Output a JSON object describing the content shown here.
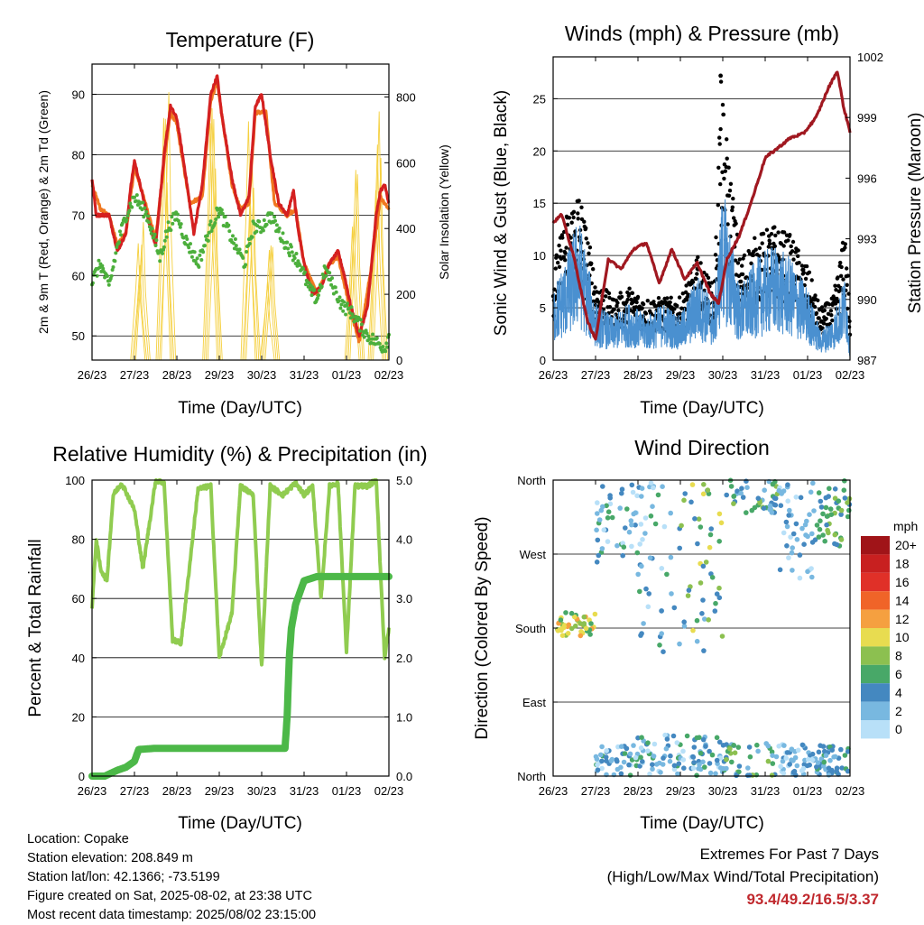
{
  "panels": {
    "temperature": {
      "title": "Temperature (F)",
      "xlabel": "Time (Day/UTC)",
      "ylabel_left": "2m & 9m T (Red, Orange) & 2m Td (Green)",
      "ylabel_right": "Solar Insolation (Yellow)"
    },
    "winds": {
      "title": "Winds (mph) & Pressure (mb)",
      "xlabel": "Time (Day/UTC)",
      "ylabel_left": "Sonic Wind & Gust (Blue, Black)",
      "ylabel_right": "Station Pressure (Maroon)"
    },
    "humidity": {
      "title": "Relative Humidity (%) & Precipitation (in)",
      "xlabel": "Time (Day/UTC)",
      "ylabel_left": "Percent & Total Rainfall"
    },
    "direction": {
      "title": "Wind Direction",
      "xlabel": "Time (Day/UTC)",
      "ylabel_left": "Direction (Colored By Speed)",
      "legend_title": "mph",
      "legend_labels": [
        "20+",
        "18",
        "16",
        "14",
        "12",
        "10",
        "8",
        "6",
        "4",
        "2",
        "0"
      ]
    }
  },
  "info": {
    "location": "Location: Copake",
    "elevation": "Station elevation: 208.849 m",
    "latlon": "Station lat/lon: 42.1366; -73.5199",
    "created": "Figure created on Sat, 2025-08-02, at 23:38 UTC",
    "timestamp": "Most recent data timestamp: 2025/08/02 23:15:00"
  },
  "extremes": {
    "line1": "Extremes For Past 7 Days",
    "line2": "(High/Low/Max Wind/Total Precipitation)",
    "values": "93.4/49.2/16.5/3.37"
  },
  "colors": {
    "temp_2m": "#d42020",
    "temp_9m": "#f07820",
    "dewpoint": "#4caf3c",
    "solar": "#f5d040",
    "wind": "#4a90d0",
    "gust": "#000000",
    "pressure": "#a01820",
    "rh": "#90cc50",
    "rain": "#4cb848",
    "speed_scale": [
      "#a01418",
      "#c82020",
      "#e03028",
      "#f06428",
      "#f5a040",
      "#e8dc50",
      "#8cc050",
      "#48a868",
      "#4488c0",
      "#78b8e0",
      "#b8e0f8"
    ]
  },
  "chart_data": [
    {
      "type": "line",
      "title": "Temperature (F)",
      "xlabel": "Time (Day/UTC)",
      "ylabel": "2m & 9m T (Red, Orange) & 2m Td (Green)",
      "y2label": "Solar Insolation (Yellow)",
      "x_ticks": [
        "26/23",
        "27/23",
        "28/23",
        "29/23",
        "30/23",
        "31/23",
        "01/23",
        "02/23"
      ],
      "ylim": [
        46,
        95
      ],
      "y_ticks": [
        50,
        60,
        70,
        80,
        90
      ],
      "y2lim": [
        0,
        900
      ],
      "y2_ticks": [
        0,
        200,
        400,
        600,
        800
      ],
      "grid": true,
      "series": [
        {
          "name": "2m T",
          "x": [
            0,
            0.1,
            0.2,
            0.4,
            0.6,
            0.8,
            0.9,
            1.0,
            1.1,
            1.3,
            1.5,
            1.7,
            1.85,
            2.0,
            2.2,
            2.4,
            2.6,
            2.8,
            2.95,
            3.05,
            3.3,
            3.5,
            3.7,
            3.85,
            4.0,
            4.2,
            4.4,
            4.6,
            4.75,
            4.85,
            5.0,
            5.2,
            5.4,
            5.6,
            5.8,
            5.95,
            6.1,
            6.3,
            6.5,
            6.7,
            6.8,
            6.9,
            7.0
          ],
          "y": [
            76,
            70,
            70,
            70,
            64,
            67,
            74,
            79,
            76,
            70,
            65,
            80,
            88,
            86,
            77,
            67,
            75,
            90,
            93,
            87,
            76,
            70,
            73,
            88,
            90,
            80,
            72,
            70,
            74,
            68,
            62,
            57,
            58,
            62,
            64,
            60,
            55,
            50,
            55,
            70,
            74,
            75,
            72
          ]
        },
        {
          "name": "9m T",
          "x": [
            0,
            0.2,
            0.4,
            0.6,
            0.8,
            1.0,
            1.3,
            1.5,
            1.7,
            1.85,
            2.0,
            2.3,
            2.6,
            2.8,
            2.95,
            3.3,
            3.5,
            3.7,
            3.85,
            4.1,
            4.3,
            4.6,
            4.8,
            5.0,
            5.3,
            5.6,
            5.8,
            6.1,
            6.3,
            6.6,
            6.8,
            7.0
          ],
          "y": [
            75,
            71,
            70,
            65,
            67,
            78,
            71,
            66,
            79,
            87,
            85,
            72,
            73,
            89,
            92,
            75,
            71,
            72,
            87,
            87,
            72,
            70,
            71,
            62,
            57,
            62,
            63,
            54,
            49,
            62,
            73,
            71
          ]
        },
        {
          "name": "2m Td",
          "x": [
            0,
            0.2,
            0.4,
            0.6,
            0.8,
            1.0,
            1.3,
            1.6,
            1.8,
            2.0,
            2.2,
            2.5,
            2.8,
            3.0,
            3.3,
            3.6,
            3.8,
            4.0,
            4.2,
            4.5,
            4.7,
            4.9,
            5.1,
            5.3,
            5.5,
            5.7,
            5.9,
            6.1,
            6.3,
            6.5,
            6.7,
            6.9,
            7.0
          ],
          "y": [
            59,
            62,
            58,
            65,
            70,
            73,
            70,
            63,
            68,
            70,
            66,
            62,
            68,
            71,
            66,
            62,
            68,
            68,
            70,
            66,
            64,
            62,
            58,
            56,
            61,
            58,
            55,
            54,
            52,
            50,
            49,
            48,
            50
          ]
        },
        {
          "name": "Solar Insolation",
          "y_axis": "right",
          "peaks": [
            {
              "x": 1.15,
              "y": 420
            },
            {
              "x": 1.75,
              "y": 860
            },
            {
              "x": 2.85,
              "y": 830
            },
            {
              "x": 3.75,
              "y": 800
            },
            {
              "x": 4.2,
              "y": 370
            },
            {
              "x": 6.75,
              "y": 860
            },
            {
              "x": 6.2,
              "y": 600
            }
          ]
        }
      ]
    },
    {
      "type": "line",
      "title": "Winds (mph) & Pressure (mb)",
      "xlabel": "Time (Day/UTC)",
      "ylabel": "Sonic Wind & Gust (Blue, Black)",
      "y2label": "Station Pressure (Maroon)",
      "x_ticks": [
        "26/23",
        "27/23",
        "28/23",
        "29/23",
        "30/23",
        "31/23",
        "01/23",
        "02/23"
      ],
      "ylim": [
        0,
        29
      ],
      "y_ticks": [
        0,
        5,
        10,
        15,
        20,
        25
      ],
      "y2lim": [
        987,
        1002
      ],
      "y2_ticks": [
        987,
        990,
        993,
        996,
        999,
        1002
      ],
      "grid": true,
      "series": [
        {
          "name": "Sonic Wind",
          "x": [
            0,
            0.3,
            0.6,
            1.0,
            1.4,
            1.8,
            2.2,
            2.6,
            3.0,
            3.4,
            3.8,
            4.0,
            4.4,
            4.8,
            5.2,
            5.6,
            6.0,
            6.3,
            6.6,
            6.9,
            7.0
          ],
          "y": [
            5,
            7,
            10,
            4,
            3,
            4,
            3,
            4,
            3,
            6,
            4,
            12,
            5,
            7,
            8,
            7,
            5,
            2,
            3,
            6,
            1
          ]
        },
        {
          "name": "Gust",
          "x": [
            0,
            0.3,
            0.6,
            1.0,
            1.4,
            1.8,
            2.2,
            2.6,
            3.0,
            3.4,
            3.8,
            3.95,
            4.4,
            4.8,
            5.2,
            5.6,
            6.0,
            6.3,
            6.6,
            6.9,
            7.0
          ],
          "y": [
            9,
            14,
            17,
            8,
            6,
            7,
            6,
            6,
            6,
            10,
            7,
            27,
            10,
            12,
            13,
            12,
            9,
            5,
            6,
            13,
            4
          ]
        },
        {
          "name": "Station Pressure",
          "y_axis": "right",
          "x": [
            0,
            0.2,
            0.5,
            0.8,
            1.0,
            1.3,
            1.6,
            1.9,
            2.2,
            2.5,
            2.8,
            3.1,
            3.4,
            3.7,
            3.9,
            4.1,
            4.4,
            4.7,
            5.0,
            5.3,
            5.6,
            5.9,
            6.2,
            6.5,
            6.7,
            6.85,
            7.0
          ],
          "y": [
            993.8,
            994.2,
            992.0,
            989.0,
            988.0,
            992.0,
            991.5,
            992.5,
            992.8,
            990.8,
            992.5,
            991.0,
            991.8,
            990.3,
            989.8,
            992.0,
            993.2,
            995.0,
            997.0,
            997.5,
            998.0,
            998.2,
            999.0,
            1000.5,
            1001.3,
            999.5,
            998.3
          ]
        }
      ]
    },
    {
      "type": "line",
      "title": "Relative Humidity (%) & Precipitation (in)",
      "xlabel": "Time (Day/UTC)",
      "ylabel": "Percent & Total Rainfall",
      "x_ticks": [
        "26/23",
        "27/23",
        "28/23",
        "29/23",
        "30/23",
        "31/23",
        "01/23",
        "02/23"
      ],
      "ylim": [
        0,
        100
      ],
      "y_ticks": [
        0,
        20,
        40,
        60,
        80,
        100
      ],
      "y2lim": [
        0,
        5
      ],
      "y2_ticks": [
        "0.0",
        "1.0",
        "2.0",
        "3.0",
        "4.0",
        "5.0"
      ],
      "grid": true,
      "series": [
        {
          "name": "Relative Humidity",
          "x": [
            0,
            0.1,
            0.2,
            0.35,
            0.5,
            0.7,
            1.0,
            1.2,
            1.5,
            1.7,
            1.9,
            2.1,
            2.5,
            2.8,
            3.0,
            3.3,
            3.5,
            3.8,
            4.0,
            4.2,
            4.5,
            4.8,
            5.0,
            5.2,
            5.4,
            5.6,
            5.8,
            6.0,
            6.2,
            6.5,
            6.7,
            6.9,
            7.0
          ],
          "y": [
            57,
            80,
            70,
            66,
            95,
            99,
            90,
            70,
            100,
            99,
            46,
            45,
            97,
            98,
            40,
            55,
            98,
            95,
            37,
            98,
            95,
            99,
            95,
            98,
            60,
            98,
            99,
            42,
            98,
            98,
            100,
            40,
            50
          ]
        },
        {
          "name": "Total Rainfall",
          "y_axis": "right",
          "x": [
            0,
            0.3,
            0.6,
            0.8,
            1.0,
            1.1,
            1.5,
            2.0,
            3.0,
            4.0,
            4.55,
            4.6,
            4.65,
            4.7,
            4.8,
            4.9,
            5.0,
            5.3,
            6.0,
            7.0
          ],
          "y": [
            0.0,
            0.0,
            0.1,
            0.15,
            0.25,
            0.45,
            0.47,
            0.47,
            0.47,
            0.47,
            0.47,
            1.0,
            2.0,
            2.5,
            2.9,
            3.1,
            3.3,
            3.37,
            3.37,
            3.37
          ]
        }
      ]
    },
    {
      "type": "scatter",
      "title": "Wind Direction",
      "xlabel": "Time (Day/UTC)",
      "ylabel": "Direction (Colored By Speed)",
      "x_ticks": [
        "26/23",
        "27/23",
        "28/23",
        "29/23",
        "30/23",
        "31/23",
        "01/23",
        "02/23"
      ],
      "y_ticks": [
        "North",
        "East",
        "South",
        "West",
        "North"
      ],
      "ylim": [
        0,
        360
      ],
      "grid": true,
      "legend": {
        "title": "mph",
        "labels": [
          "20+",
          "18",
          "16",
          "14",
          "12",
          "10",
          "8",
          "6",
          "4",
          "2",
          "0"
        ],
        "placement": "right"
      },
      "clusters": [
        {
          "x": [
            0.1,
            1.0
          ],
          "dir": [
            170,
            200
          ],
          "speed": [
            6,
            12
          ]
        },
        {
          "x": [
            1.0,
            2.0
          ],
          "dir": [
            0,
            40
          ],
          "speed": [
            0,
            6
          ]
        },
        {
          "x": [
            1.0,
            2.0
          ],
          "dir": [
            260,
            360
          ],
          "speed": [
            0,
            6
          ]
        },
        {
          "x": [
            2.0,
            3.0
          ],
          "dir": [
            0,
            50
          ],
          "speed": [
            0,
            6
          ]
        },
        {
          "x": [
            2.0,
            3.0
          ],
          "dir": [
            150,
            360
          ],
          "speed": [
            0,
            6
          ]
        },
        {
          "x": [
            3.0,
            4.0
          ],
          "dir": [
            0,
            50
          ],
          "speed": [
            0,
            6
          ]
        },
        {
          "x": [
            3.0,
            4.0
          ],
          "dir": [
            140,
            360
          ],
          "speed": [
            2,
            10
          ]
        },
        {
          "x": [
            4.0,
            5.3
          ],
          "dir": [
            0,
            40
          ],
          "speed": [
            2,
            8
          ]
        },
        {
          "x": [
            4.0,
            5.3
          ],
          "dir": [
            320,
            360
          ],
          "speed": [
            2,
            8
          ]
        },
        {
          "x": [
            5.3,
            6.2
          ],
          "dir": [
            0,
            40
          ],
          "speed": [
            0,
            4
          ]
        },
        {
          "x": [
            5.3,
            6.2
          ],
          "dir": [
            240,
            360
          ],
          "speed": [
            0,
            4
          ]
        },
        {
          "x": [
            6.2,
            7.0
          ],
          "dir": [
            280,
            360
          ],
          "speed": [
            4,
            8
          ]
        },
        {
          "x": [
            6.2,
            7.0
          ],
          "dir": [
            0,
            40
          ],
          "speed": [
            2,
            6
          ]
        }
      ]
    }
  ]
}
